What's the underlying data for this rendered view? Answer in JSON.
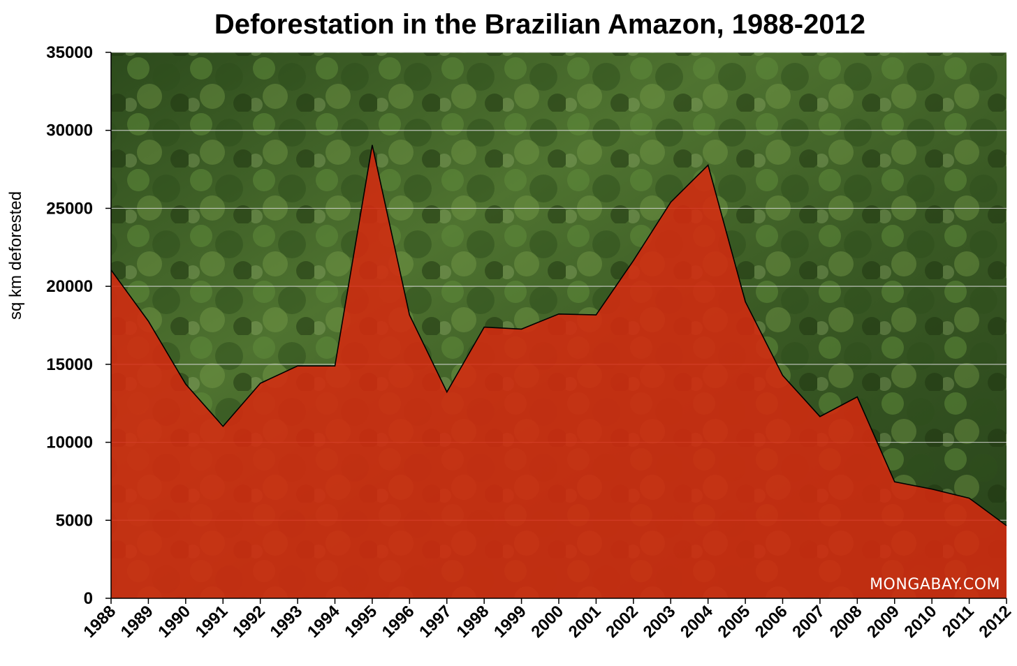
{
  "chart_data": {
    "type": "area",
    "title": "Deforestation in the Brazilian Amazon, 1988-2012",
    "ylabel": "sq km deforested",
    "xlabel": "",
    "ylim": [
      0,
      35000
    ],
    "yticks": [
      0,
      5000,
      10000,
      15000,
      20000,
      25000,
      30000,
      35000
    ],
    "x": [
      "1988",
      "1989",
      "1990",
      "1991",
      "1992",
      "1993",
      "1994",
      "1995",
      "1996",
      "1997",
      "1998",
      "1999",
      "2000",
      "2001",
      "2002",
      "2003",
      "2004",
      "2005",
      "2006",
      "2007",
      "2008",
      "2009",
      "2010",
      "2011",
      "2012"
    ],
    "values": [
      21050,
      17770,
      13730,
      11030,
      13786,
      14896,
      14896,
      29059,
      18161,
      13227,
      17383,
      17259,
      18226,
      18165,
      21651,
      25396,
      27772,
      19014,
      14286,
      11651,
      12911,
      7464,
      7000,
      6418,
      4656
    ],
    "grid": true,
    "legend": "none",
    "colors": {
      "area_fill": "#d42a10",
      "background_forest_dark": "#1f3a14",
      "background_forest_light": "#6a8c3c",
      "gridline": "#d8d8d8",
      "outline": "#000000"
    },
    "credit": "MONGABAY.COM"
  }
}
